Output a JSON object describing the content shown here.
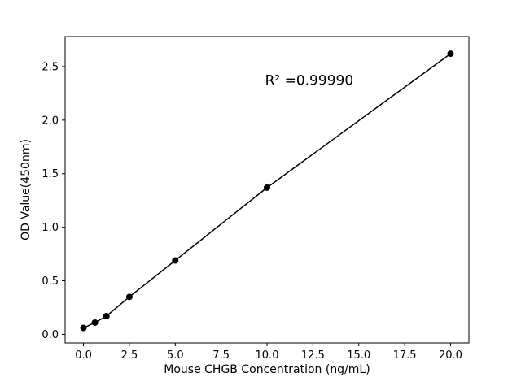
{
  "chart_data": {
    "type": "scatter",
    "title": "",
    "xlabel": "Mouse CHGB Concentration (ng/mL)",
    "ylabel": "OD Value(450nm)",
    "x": [
      0,
      0.625,
      1.25,
      2.5,
      5,
      10,
      20
    ],
    "y": [
      0.06,
      0.11,
      0.17,
      0.35,
      0.69,
      1.37,
      2.62
    ],
    "line_style": "solid line through points with filled circle markers",
    "line_color": "#000000",
    "marker_color": "#000000",
    "xlim": [
      -1,
      21
    ],
    "ylim": [
      -0.08,
      2.78
    ],
    "xticks": [
      0.0,
      2.5,
      5.0,
      7.5,
      10.0,
      12.5,
      15.0,
      17.5,
      20.0
    ],
    "xtick_labels": [
      "0.0",
      "2.5",
      "5.0",
      "7.5",
      "10.0",
      "12.5",
      "15.0",
      "17.5",
      "20.0"
    ],
    "yticks": [
      0.0,
      0.5,
      1.0,
      1.5,
      2.0,
      2.5
    ],
    "ytick_labels": [
      "0.0",
      "0.5",
      "1.0",
      "1.5",
      "2.0",
      "2.5"
    ],
    "grid": false,
    "legend": null,
    "annotation": {
      "text": "R² =0.99990",
      "x": 12.3,
      "y": 2.33
    }
  }
}
